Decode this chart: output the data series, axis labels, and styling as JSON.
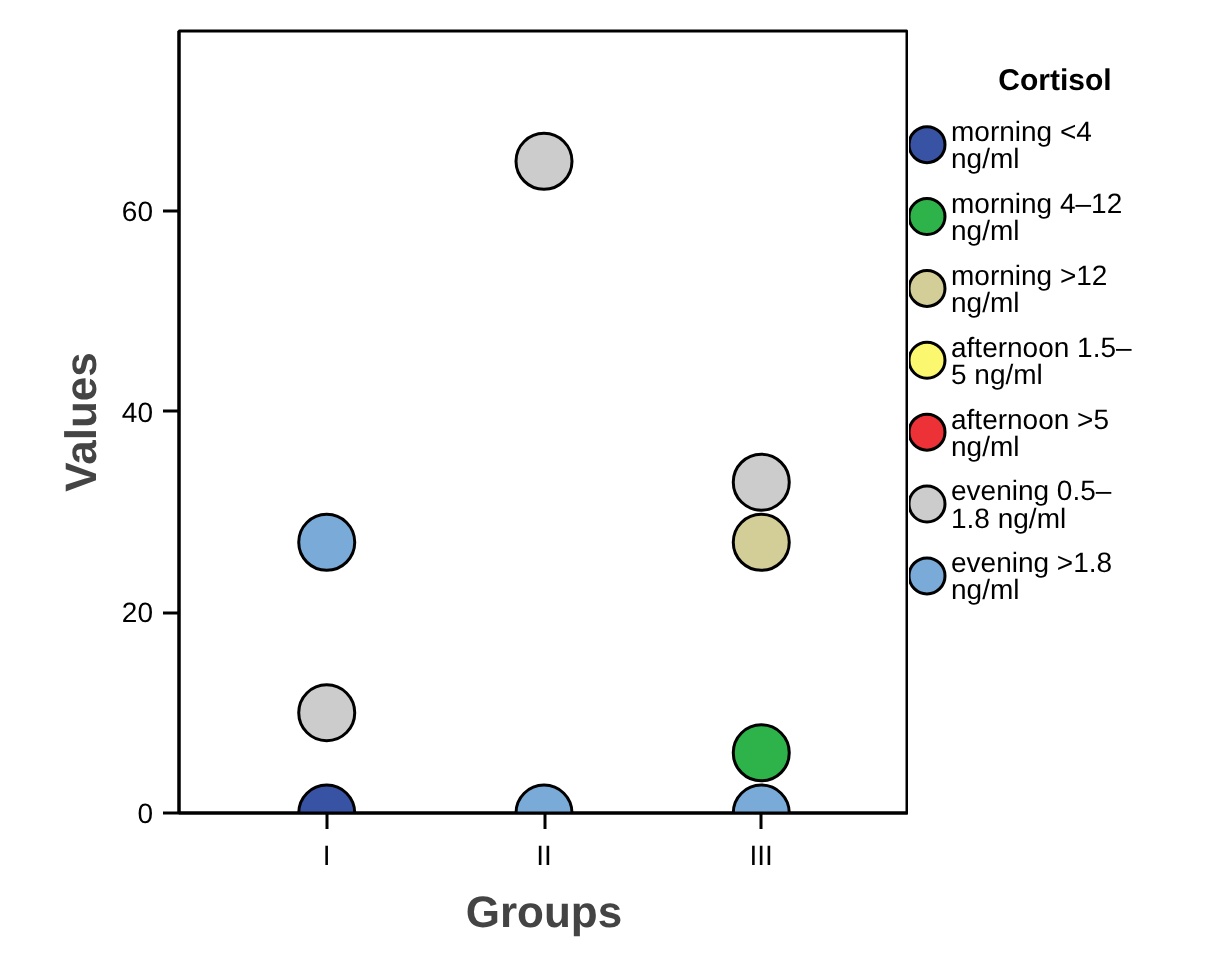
{
  "chart_data": {
    "type": "scatter",
    "xlabel": "Groups",
    "ylabel": "Values",
    "legend_title": "Cortisol",
    "categories": [
      "I",
      "II",
      "III"
    ],
    "ylim": [
      0,
      78
    ],
    "yticks": [
      0,
      20,
      40,
      60
    ],
    "grid": false,
    "legend": "right",
    "marker": "circle",
    "series": [
      {
        "name": "morning <4 ng/ml",
        "color": "#3953a4",
        "values": [
          0,
          null,
          null
        ]
      },
      {
        "name": "morning 4–12 ng/ml",
        "color": "#2db34a",
        "values": [
          null,
          null,
          6
        ]
      },
      {
        "name": "morning >12 ng/ml",
        "color": "#d3ce97",
        "values": [
          null,
          null,
          27
        ]
      },
      {
        "name": "afternoon 1.5–5 ng/ml",
        "color": "#fbf870",
        "values": [
          null,
          null,
          null
        ]
      },
      {
        "name": "afternoon >5 ng/ml",
        "color": "#ed3237",
        "values": [
          null,
          null,
          null
        ]
      },
      {
        "name": "evening 0.5–1.8 ng/ml",
        "color": "#cccccc",
        "values": [
          10,
          65,
          33
        ]
      },
      {
        "name": "evening >1.8 ng/ml",
        "color": "#7aaad8",
        "values": [
          27,
          0,
          0
        ]
      }
    ]
  }
}
